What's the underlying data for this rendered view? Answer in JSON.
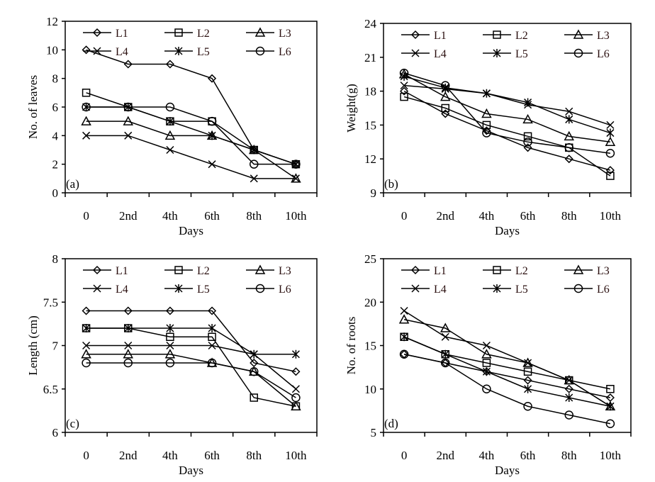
{
  "chart_data": [
    {
      "type": "line",
      "panel_label": "(a)",
      "xlabel": "Days",
      "ylabel": "No. of leaves",
      "categories": [
        "0",
        "2nd",
        "4th",
        "6th",
        "8th",
        "10th"
      ],
      "ylim": [
        0,
        12
      ],
      "ystep": 2,
      "yticks": [
        "0",
        "2",
        "4",
        "6",
        "8",
        "10",
        "12"
      ],
      "legend": "top",
      "series": [
        {
          "name": "L1",
          "marker": "diamond",
          "values": [
            10,
            9,
            9,
            8,
            3,
            2
          ]
        },
        {
          "name": "L2",
          "marker": "square",
          "values": [
            7,
            6,
            5,
            5,
            3,
            2
          ]
        },
        {
          "name": "L3",
          "marker": "triangle",
          "values": [
            5,
            5,
            4,
            4,
            3,
            1
          ]
        },
        {
          "name": "L4",
          "marker": "x",
          "values": [
            4,
            4,
            3,
            2,
            1,
            1
          ]
        },
        {
          "name": "L5",
          "marker": "asterisk",
          "values": [
            6,
            6,
            5,
            4,
            3,
            2
          ]
        },
        {
          "name": "L6",
          "marker": "circle",
          "values": [
            6,
            6,
            6,
            5,
            2,
            2
          ]
        }
      ]
    },
    {
      "type": "line",
      "panel_label": "(b)",
      "xlabel": "Days",
      "ylabel": "Weight(g)",
      "categories": [
        "0",
        "2nd",
        "4th",
        "6th",
        "8th",
        "10th"
      ],
      "ylim": [
        9,
        24
      ],
      "ystep": 3,
      "yticks": [
        "9",
        "12",
        "15",
        "18",
        "21",
        "24"
      ],
      "legend": "top",
      "series": [
        {
          "name": "L1",
          "marker": "diamond",
          "values": [
            18,
            16,
            14.5,
            13,
            12,
            11
          ]
        },
        {
          "name": "L2",
          "marker": "square",
          "values": [
            17.5,
            16.5,
            15,
            14,
            13,
            10.5
          ]
        },
        {
          "name": "L3",
          "marker": "triangle",
          "values": [
            19.5,
            17.5,
            16,
            15.5,
            14,
            13.5
          ]
        },
        {
          "name": "L4",
          "marker": "x",
          "values": [
            18.5,
            18.2,
            17.8,
            16.8,
            16.2,
            15
          ]
        },
        {
          "name": "L5",
          "marker": "asterisk",
          "values": [
            19.3,
            18.3,
            17.8,
            17,
            15.5,
            14.3
          ]
        },
        {
          "name": "L6",
          "marker": "circle",
          "values": [
            19.6,
            18.5,
            14.3,
            13.5,
            13,
            12.5
          ]
        }
      ]
    },
    {
      "type": "line",
      "panel_label": "(c)",
      "xlabel": "Days",
      "ylabel": "Length (cm)",
      "categories": [
        "0",
        "2nd",
        "4th",
        "6th",
        "8th",
        "10th"
      ],
      "ylim": [
        6,
        8
      ],
      "ystep": 0.5,
      "yticks": [
        "6",
        "6.5",
        "7",
        "7.5",
        "8"
      ],
      "legend": "top",
      "series": [
        {
          "name": "L1",
          "marker": "diamond",
          "values": [
            7.4,
            7.4,
            7.4,
            7.4,
            6.8,
            6.7
          ]
        },
        {
          "name": "L2",
          "marker": "square",
          "values": [
            7.2,
            7.2,
            7.1,
            7.1,
            6.4,
            6.3
          ]
        },
        {
          "name": "L3",
          "marker": "triangle",
          "values": [
            6.9,
            6.9,
            6.9,
            6.8,
            6.7,
            6.3
          ]
        },
        {
          "name": "L4",
          "marker": "x",
          "values": [
            7.0,
            7.0,
            7.0,
            7.0,
            6.9,
            6.5
          ]
        },
        {
          "name": "L5",
          "marker": "asterisk",
          "values": [
            7.2,
            7.2,
            7.2,
            7.2,
            6.9,
            6.9
          ]
        },
        {
          "name": "L6",
          "marker": "circle",
          "values": [
            6.8,
            6.8,
            6.8,
            6.8,
            6.7,
            6.4
          ]
        }
      ]
    },
    {
      "type": "line",
      "panel_label": "(d)",
      "xlabel": "Days",
      "ylabel": "No. of roots",
      "categories": [
        "0",
        "2nd",
        "4th",
        "6th",
        "8th",
        "10th"
      ],
      "ylim": [
        5,
        25
      ],
      "ystep": 5,
      "yticks": [
        "5",
        "10",
        "15",
        "20",
        "25"
      ],
      "legend": "top",
      "series": [
        {
          "name": "L1",
          "marker": "diamond",
          "values": [
            14,
            13,
            12,
            11,
            10,
            9
          ]
        },
        {
          "name": "L2",
          "marker": "square",
          "values": [
            16,
            14,
            13,
            12,
            11,
            10
          ]
        },
        {
          "name": "L3",
          "marker": "triangle",
          "values": [
            18,
            17,
            14,
            13,
            11,
            8
          ]
        },
        {
          "name": "L4",
          "marker": "x",
          "values": [
            19,
            16,
            15,
            13,
            11,
            8
          ]
        },
        {
          "name": "L5",
          "marker": "asterisk",
          "values": [
            16,
            14,
            12,
            10,
            9,
            8
          ]
        },
        {
          "name": "L6",
          "marker": "circle",
          "values": [
            14,
            13,
            10,
            8,
            7,
            6
          ]
        }
      ]
    }
  ]
}
